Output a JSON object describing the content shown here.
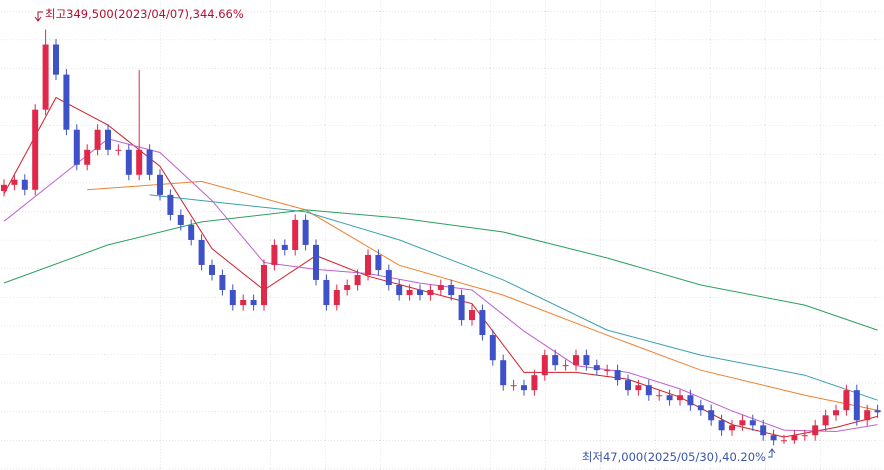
{
  "chart_data": {
    "type": "candlestick",
    "annotations": [
      "최고349,500(2023/04/07),344.66%",
      "최저47,000(2025/05/30),40.20%"
    ],
    "ylim": [
      29000,
      371000
    ],
    "grid": true,
    "up_color": "#e0284a",
    "down_color": "#3f51c6",
    "open": [
      232000,
      236500,
      240200,
      232900,
      291200,
      338600,
      316700,
      276600,
      251100,
      262000,
      276600,
      262000,
      262000,
      243800,
      262000,
      243800,
      229200,
      214600,
      207300,
      196400,
      178200,
      170900,
      160000,
      149000,
      152700,
      149000,
      178200,
      192800,
      189100,
      211000,
      192800,
      167300,
      149000,
      160000,
      163600,
      170900,
      185500,
      174500,
      163600,
      156300,
      160000,
      156300,
      160000,
      163600,
      156300,
      138100,
      145400,
      127200,
      108900,
      90700,
      90700,
      87100,
      98000,
      112600,
      105300,
      105300,
      112600,
      105300,
      101700,
      101700,
      94400,
      87100,
      90700,
      83400,
      83400,
      79800,
      83400,
      76100,
      72500,
      65200,
      57900,
      61500,
      65200,
      61500,
      54300,
      50600,
      50600,
      54300,
      54300,
      61500,
      68800,
      72500,
      87100,
      65200,
      72500
    ],
    "high": [
      240500,
      244200,
      244200,
      295200,
      349500,
      342600,
      320700,
      280600,
      266000,
      280600,
      280600,
      266000,
      266000,
      320000,
      266000,
      247800,
      233200,
      218600,
      211300,
      200400,
      182200,
      174900,
      164000,
      156700,
      156700,
      182200,
      196800,
      196800,
      215000,
      215000,
      196800,
      171300,
      164000,
      167600,
      174900,
      189500,
      189500,
      178500,
      167600,
      164000,
      164000,
      164000,
      167600,
      167600,
      160300,
      149400,
      149400,
      131200,
      112900,
      94700,
      94700,
      102000,
      116600,
      116600,
      109300,
      116600,
      116600,
      109300,
      105700,
      105700,
      98400,
      94700,
      94700,
      87400,
      87400,
      87400,
      87400,
      80100,
      76500,
      69200,
      65500,
      69200,
      69200,
      65500,
      58300,
      54600,
      58300,
      58300,
      65500,
      72800,
      76500,
      91100,
      91100,
      76500,
      76500
    ],
    "low": [
      228000,
      232500,
      228900,
      228900,
      287200,
      312700,
      272600,
      247100,
      247100,
      258000,
      258000,
      258000,
      239800,
      239800,
      239800,
      225200,
      210600,
      203300,
      192400,
      174200,
      166900,
      156000,
      145000,
      145000,
      145000,
      145000,
      174200,
      185100,
      185100,
      188800,
      163300,
      145000,
      145000,
      156000,
      159600,
      166900,
      170500,
      159600,
      152300,
      152300,
      152300,
      152300,
      156000,
      152300,
      134100,
      134100,
      123200,
      104900,
      86700,
      86700,
      83100,
      83100,
      94000,
      101300,
      101300,
      101300,
      101300,
      97700,
      97700,
      90400,
      83100,
      83100,
      79400,
      79400,
      75800,
      75800,
      72100,
      68500,
      61200,
      53900,
      53900,
      57500,
      57500,
      50300,
      47000,
      48000,
      48000,
      50300,
      50300,
      57500,
      64800,
      68500,
      61200,
      61200,
      67000
    ],
    "close": [
      236500,
      240200,
      232900,
      291200,
      338600,
      316700,
      276600,
      251100,
      262000,
      276600,
      262000,
      262000,
      243800,
      262000,
      243800,
      229200,
      214600,
      207300,
      196400,
      178200,
      170900,
      160000,
      149000,
      152700,
      149000,
      178200,
      192800,
      189100,
      211000,
      192800,
      167300,
      149000,
      160000,
      163600,
      170900,
      185500,
      174500,
      163600,
      156300,
      160000,
      156300,
      160000,
      163600,
      156300,
      138100,
      145400,
      127200,
      108900,
      90700,
      90700,
      87100,
      98000,
      112600,
      105300,
      105300,
      112600,
      105300,
      101700,
      101700,
      94400,
      87100,
      90700,
      83400,
      83400,
      79800,
      83400,
      76100,
      72500,
      65200,
      57900,
      61500,
      65200,
      61500,
      54300,
      50600,
      50600,
      54300,
      54300,
      61500,
      68800,
      72500,
      87100,
      65200,
      72500,
      71000
    ],
    "lines": [
      {
        "color": "#d0202a",
        "x": [
          0,
          5,
          10,
          15,
          20,
          25,
          30,
          35,
          40,
          45,
          50,
          55,
          60,
          65,
          70,
          75,
          80,
          84
        ],
        "values": [
          230000,
          300000,
          280000,
          250000,
          190000,
          160000,
          185000,
          170000,
          160000,
          150000,
          100000,
          100000,
          95000,
          82000,
          62000,
          53000,
          60000,
          68000
        ]
      },
      {
        "color": "#c060d0",
        "x": [
          0,
          5,
          10,
          15,
          20,
          25,
          30,
          35,
          40,
          45,
          50,
          55,
          60,
          65,
          70,
          75,
          80,
          84
        ],
        "values": [
          210000,
          240000,
          270000,
          260000,
          225000,
          180000,
          175000,
          172000,
          165000,
          160000,
          130000,
          105000,
          100000,
          88000,
          72000,
          58000,
          57000,
          62000
        ]
      },
      {
        "color": "#f08030",
        "x": [
          8,
          19,
          29,
          38,
          48,
          58,
          67,
          77,
          84
        ],
        "values": [
          232900,
          239000,
          218300,
          178000,
          156300,
          127100,
          101600,
          83400,
          72500
        ]
      },
      {
        "color": "#3aa0b0",
        "x": [
          14,
          29,
          38,
          48,
          58,
          67,
          77,
          84
        ],
        "values": [
          229200,
          216800,
          196400,
          167300,
          130800,
          112600,
          98000,
          79800
        ]
      },
      {
        "color": "#2aa060",
        "x": [
          0,
          10,
          19,
          29,
          38,
          48,
          58,
          67,
          77,
          84
        ],
        "values": [
          165100,
          192800,
          209500,
          218300,
          212400,
          202200,
          183300,
          163600,
          149000,
          130800
        ]
      }
    ]
  }
}
